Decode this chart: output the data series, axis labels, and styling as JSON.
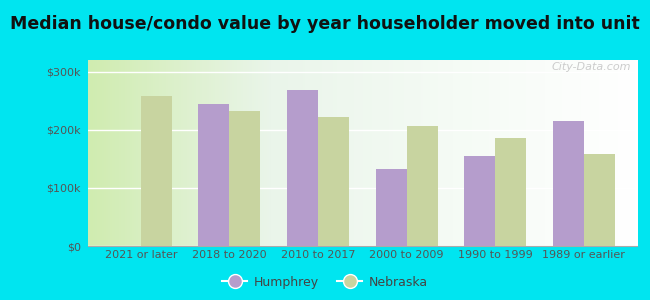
{
  "title": "Median house/condo value by year householder moved into unit",
  "categories": [
    "2021 or later",
    "2018 to 2020",
    "2010 to 2017",
    "2000 to 2009",
    "1990 to 1999",
    "1989 or earlier"
  ],
  "humphrey": [
    null,
    245000,
    268000,
    132000,
    155000,
    215000
  ],
  "nebraska": [
    258000,
    232000,
    222000,
    207000,
    186000,
    158000
  ],
  "humphrey_color": "#b59dcc",
  "nebraska_color": "#c8d4a0",
  "background_outer": "#00e5f0",
  "ylim": [
    0,
    320000
  ],
  "yticks": [
    0,
    100000,
    200000,
    300000
  ],
  "ytick_labels": [
    "$0",
    "$100k",
    "$200k",
    "$300k"
  ],
  "legend_humphrey": "Humphrey",
  "legend_nebraska": "Nebraska",
  "bar_width": 0.35,
  "title_fontsize": 12.5,
  "tick_fontsize": 8,
  "watermark": "City-Data.com"
}
